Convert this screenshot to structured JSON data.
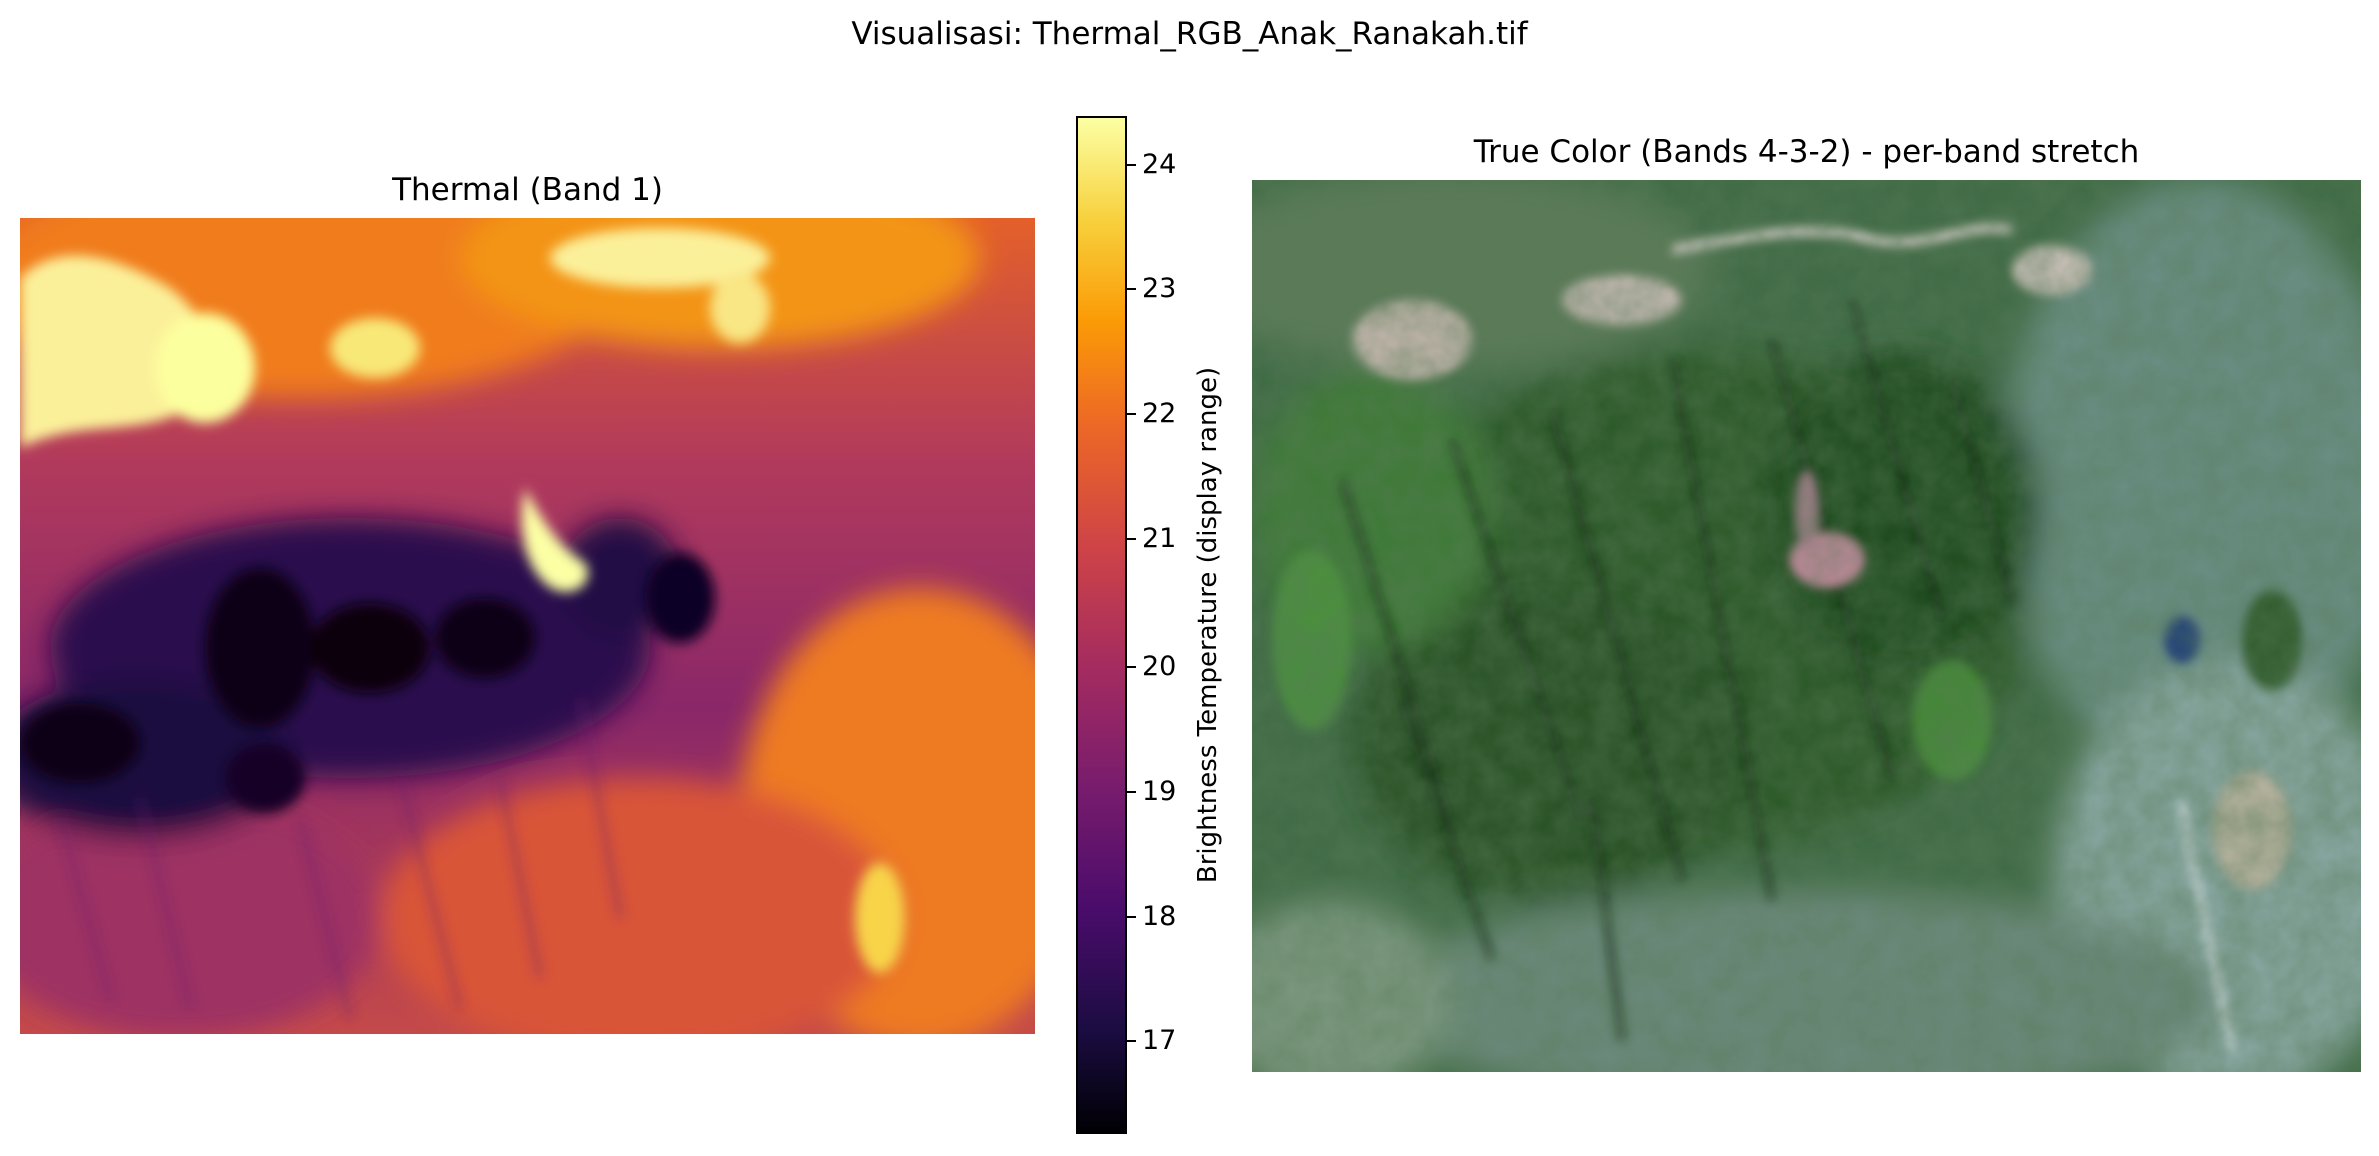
{
  "figure": {
    "suptitle": "Visualisasi: Thermal_RGB_Anak_Ranakah.tif"
  },
  "thermal_panel": {
    "title": "Thermal (Band 1)",
    "colormap": "inferno",
    "colorbar": {
      "label": "Brightness Temperature (display range)",
      "ticks": [
        "17",
        "18",
        "19",
        "20",
        "21",
        "22",
        "23",
        "24"
      ]
    }
  },
  "rgb_panel": {
    "title": "True Color (Bands 4-3-2) - per-band stretch"
  },
  "colors": {
    "inferno_low": "#000004",
    "inferno_mid": "#a52c60",
    "inferno_high": "#fcffa4",
    "vegetation_dark": "#1f3d1c",
    "vegetation_bright": "#4f9c3c",
    "water": "#24407a",
    "crater_pink": "#c98aa0"
  }
}
